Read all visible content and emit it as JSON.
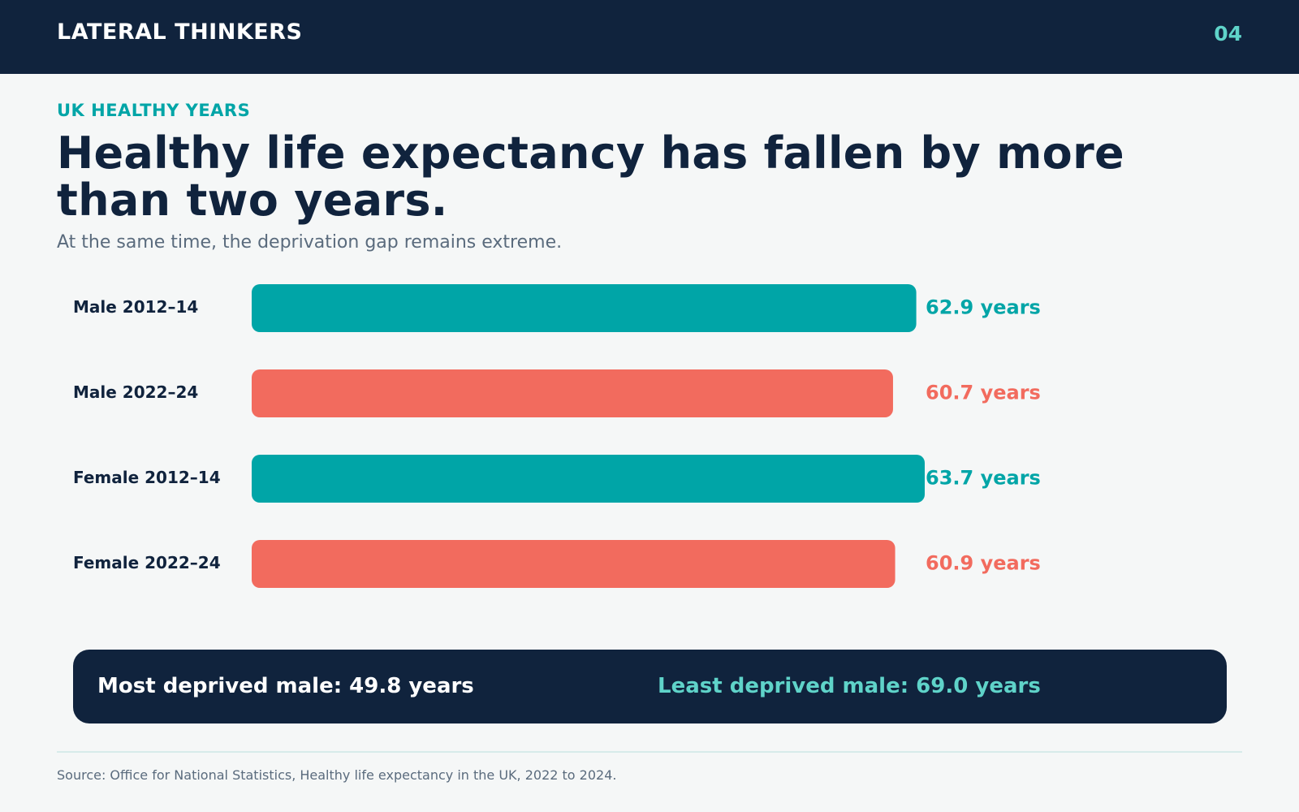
{
  "header": {
    "brand": "LATERAL THINKERS",
    "page_number": "04"
  },
  "eyebrow": "UK HEALTHY YEARS",
  "headline": "Healthy life expectancy has fallen by more than two years.",
  "subhead": "At the same time, the deprivation gap remains extreme.",
  "colors": {
    "navy": "#10233d",
    "teal": "#00a5a7",
    "coral": "#f26b5e",
    "mint": "#5fd3c9",
    "background": "#f5f7f7"
  },
  "chart_data": {
    "type": "bar",
    "orientation": "horizontal",
    "categories": [
      "Male 2012–14",
      "Male 2022–24",
      "Female 2012–14",
      "Female 2022–24"
    ],
    "values": [
      62.9,
      60.7,
      63.7,
      60.9
    ],
    "value_labels": [
      "62.9 years",
      "60.7 years",
      "63.7 years",
      "60.9 years"
    ],
    "bar_colors": [
      "#00a5a7",
      "#f26b5e",
      "#00a5a7",
      "#f26b5e"
    ],
    "unit": "years",
    "xlim": [
      0,
      63.7
    ],
    "grid": false,
    "legend": "none"
  },
  "callout": {
    "left": "Most deprived male: 49.8 years",
    "right": "Least deprived male: 69.0 years"
  },
  "source": "Source: Office for National Statistics, Healthy life expectancy in the UK, 2022 to 2024."
}
